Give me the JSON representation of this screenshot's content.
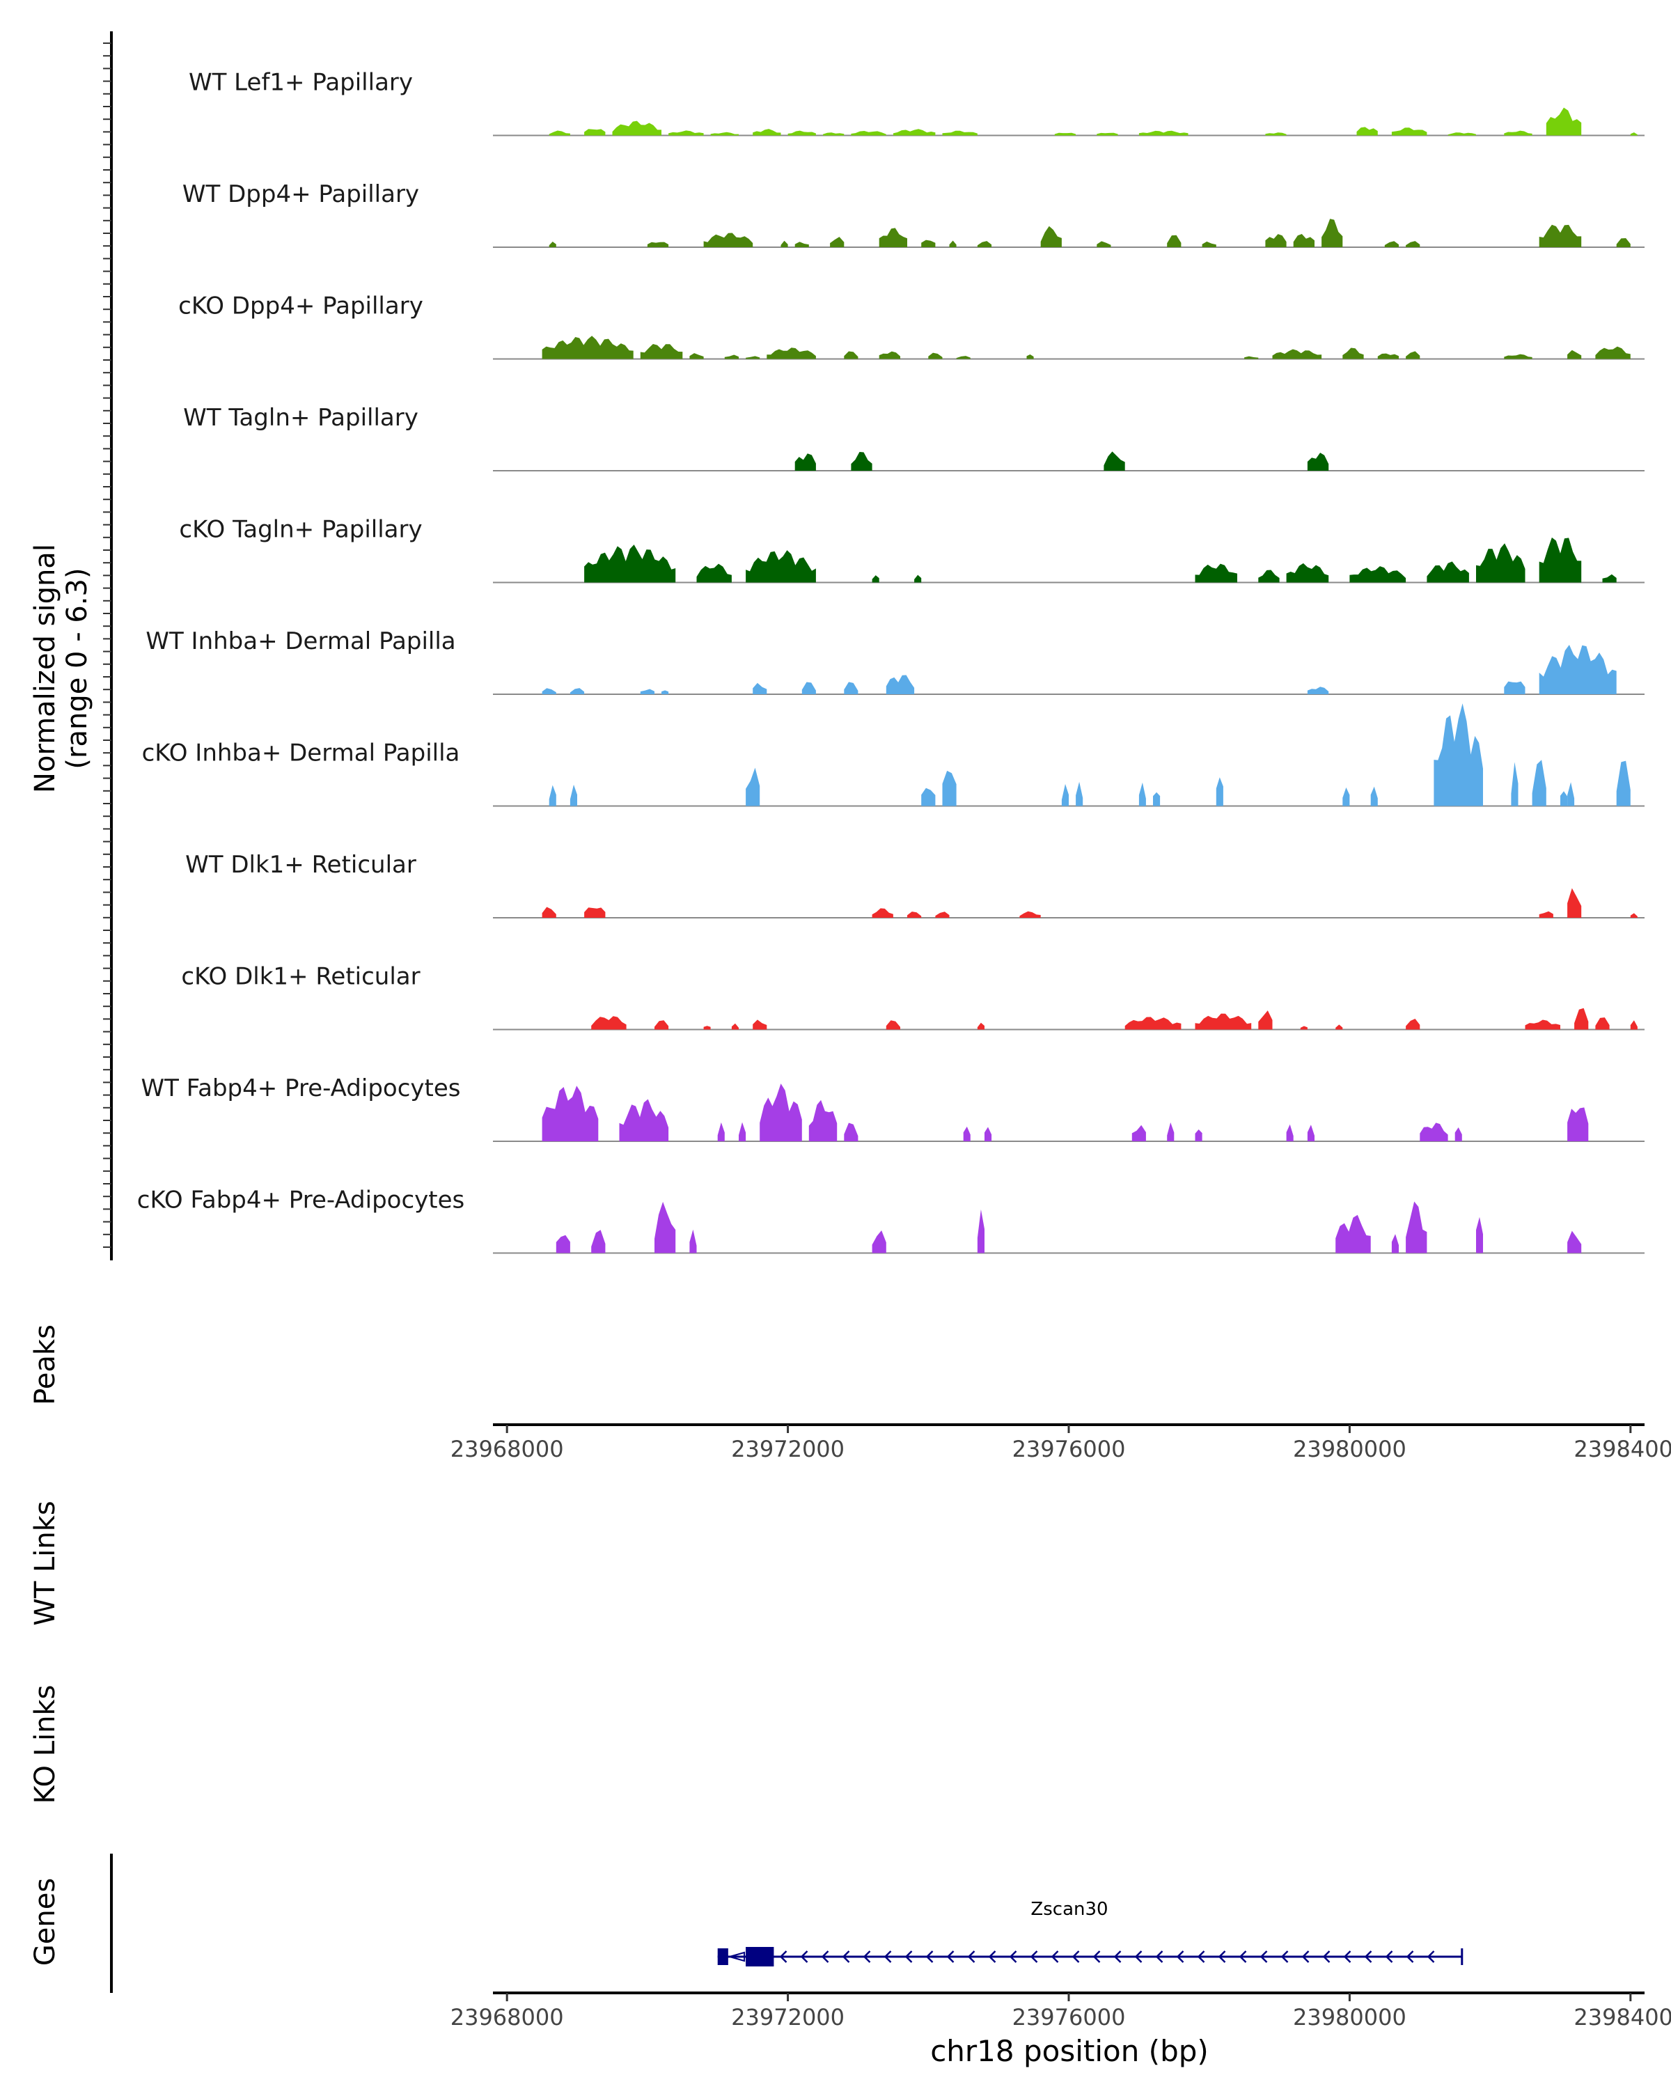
{
  "chart_data": {
    "type": "area",
    "title": "",
    "y_axis_label_line1": "Normalized signal",
    "y_axis_label_line2": "(range 0 - 6.3)",
    "ylim": [
      0,
      6.3
    ],
    "xlabel": "chr18 position (bp)",
    "xlim": [
      23967800,
      23984200
    ],
    "x_ticks": [
      23968000,
      23972000,
      23976000,
      23980000,
      23984000
    ],
    "x_tick_labels": [
      "23968000",
      "23972000",
      "23976000",
      "23980000",
      "23984000"
    ],
    "tracks": [
      {
        "name": "WT Lef1+ Papillary",
        "color": "#77d00a",
        "peaks": [
          [
            23968600,
            23968900,
            0.3
          ],
          [
            23969100,
            23969400,
            0.5
          ],
          [
            23969500,
            23970200,
            0.9
          ],
          [
            23970300,
            23970800,
            0.3
          ],
          [
            23970900,
            23971300,
            0.2
          ],
          [
            23971500,
            23971900,
            0.4
          ],
          [
            23972000,
            23972400,
            0.3
          ],
          [
            23972500,
            23972800,
            0.2
          ],
          [
            23972900,
            23973400,
            0.3
          ],
          [
            23973500,
            23974100,
            0.4
          ],
          [
            23974200,
            23974700,
            0.3
          ],
          [
            23975800,
            23976100,
            0.2
          ],
          [
            23976400,
            23976700,
            0.2
          ],
          [
            23977000,
            23977700,
            0.3
          ],
          [
            23978800,
            23979100,
            0.2
          ],
          [
            23980100,
            23980400,
            0.6
          ],
          [
            23980600,
            23981100,
            0.5
          ],
          [
            23981400,
            23981800,
            0.2
          ],
          [
            23982200,
            23982600,
            0.3
          ],
          [
            23982800,
            23983300,
            1.7
          ],
          [
            23984000,
            23984100,
            0.2
          ]
        ]
      },
      {
        "name": "WT Dpp4+ Papillary",
        "color": "#4b850c",
        "peaks": [
          [
            23968600,
            23968700,
            0.4
          ],
          [
            23970000,
            23970300,
            0.4
          ],
          [
            23970800,
            23971500,
            0.9
          ],
          [
            23971900,
            23972000,
            0.4
          ],
          [
            23972100,
            23972300,
            0.4
          ],
          [
            23972600,
            23972800,
            0.7
          ],
          [
            23973300,
            23973700,
            1.2
          ],
          [
            23973900,
            23974100,
            0.6
          ],
          [
            23974300,
            23974400,
            0.4
          ],
          [
            23974700,
            23974900,
            0.4
          ],
          [
            23975600,
            23975900,
            1.3
          ],
          [
            23976400,
            23976600,
            0.4
          ],
          [
            23977400,
            23977600,
            0.8
          ],
          [
            23977900,
            23978100,
            0.4
          ],
          [
            23978800,
            23979100,
            0.9
          ],
          [
            23979200,
            23979500,
            0.9
          ],
          [
            23979600,
            23979900,
            1.8
          ],
          [
            23980500,
            23980700,
            0.4
          ],
          [
            23980800,
            23981000,
            0.4
          ],
          [
            23982700,
            23983300,
            1.5
          ],
          [
            23983800,
            23984000,
            0.6
          ]
        ]
      },
      {
        "name": "cKO Dpp4+ Papillary",
        "color": "#4b850c",
        "peaks": [
          [
            23968500,
            23969800,
            1.4
          ],
          [
            23969900,
            23970500,
            1.0
          ],
          [
            23970600,
            23970800,
            0.4
          ],
          [
            23971100,
            23971300,
            0.3
          ],
          [
            23971400,
            23971600,
            0.2
          ],
          [
            23971700,
            23972400,
            0.7
          ],
          [
            23972800,
            23973000,
            0.5
          ],
          [
            23973300,
            23973600,
            0.5
          ],
          [
            23974000,
            23974200,
            0.4
          ],
          [
            23974400,
            23974600,
            0.2
          ],
          [
            23975400,
            23975500,
            0.4
          ],
          [
            23978500,
            23978700,
            0.2
          ],
          [
            23978900,
            23979600,
            0.6
          ],
          [
            23979900,
            23980200,
            0.7
          ],
          [
            23980400,
            23980700,
            0.4
          ],
          [
            23980800,
            23981000,
            0.5
          ],
          [
            23982200,
            23982600,
            0.3
          ],
          [
            23983100,
            23983300,
            0.6
          ],
          [
            23983500,
            23984000,
            0.8
          ]
        ]
      },
      {
        "name": "WT Tagln+ Papillary",
        "color": "#006000",
        "peaks": [
          [
            23972100,
            23972400,
            1.2
          ],
          [
            23972900,
            23973200,
            1.2
          ],
          [
            23976500,
            23976800,
            1.2
          ],
          [
            23979400,
            23979700,
            1.2
          ]
        ]
      },
      {
        "name": "cKO Tagln+ Papillary",
        "color": "#006000",
        "peaks": [
          [
            23969100,
            23970400,
            2.3
          ],
          [
            23970700,
            23971200,
            1.2
          ],
          [
            23971400,
            23972400,
            2.0
          ],
          [
            23973200,
            23973300,
            0.6
          ],
          [
            23973800,
            23973900,
            0.6
          ],
          [
            23977800,
            23978400,
            1.2
          ],
          [
            23978700,
            23979000,
            0.8
          ],
          [
            23979100,
            23979700,
            1.2
          ],
          [
            23980000,
            23980800,
            1.0
          ],
          [
            23981100,
            23981700,
            1.3
          ],
          [
            23981800,
            23982500,
            2.4
          ],
          [
            23982700,
            23983300,
            3.0
          ],
          [
            23983600,
            23983800,
            0.6
          ]
        ]
      },
      {
        "name": "WT Inhba+ Dermal Papilla",
        "color": "#5aabe8",
        "peaks": [
          [
            23968500,
            23968700,
            0.4
          ],
          [
            23968900,
            23969100,
            0.4
          ],
          [
            23969900,
            23970100,
            0.4
          ],
          [
            23970200,
            23970300,
            0.4
          ],
          [
            23971500,
            23971700,
            0.8
          ],
          [
            23972200,
            23972400,
            0.8
          ],
          [
            23972800,
            23973000,
            0.8
          ],
          [
            23973400,
            23973800,
            1.3
          ],
          [
            23979400,
            23979700,
            0.5
          ],
          [
            23982200,
            23982500,
            1.0
          ],
          [
            23982700,
            23983800,
            3.1
          ]
        ]
      },
      {
        "name": "cKO Inhba+ Dermal Papilla",
        "color": "#5aabe8",
        "peaks": [
          [
            23968600,
            23968700,
            1.5
          ],
          [
            23968900,
            23969000,
            1.5
          ],
          [
            23971400,
            23971600,
            2.7
          ],
          [
            23973900,
            23974100,
            1.5
          ],
          [
            23974200,
            23974400,
            3.0
          ],
          [
            23975900,
            23976000,
            1.5
          ],
          [
            23976100,
            23976200,
            1.5
          ],
          [
            23977000,
            23977100,
            1.5
          ],
          [
            23977200,
            23977300,
            1.5
          ],
          [
            23978100,
            23978200,
            2.8
          ],
          [
            23979900,
            23980000,
            1.5
          ],
          [
            23980300,
            23980400,
            1.5
          ],
          [
            23981200,
            23981900,
            6.3
          ],
          [
            23982300,
            23982400,
            3.0
          ],
          [
            23982600,
            23982800,
            3.0
          ],
          [
            23983000,
            23983100,
            1.5
          ],
          [
            23983100,
            23983200,
            1.5
          ],
          [
            23983800,
            23984000,
            3.0
          ]
        ]
      },
      {
        "name": "WT Dlk1+ Reticular",
        "color": "#ee2b2b",
        "peaks": [
          [
            23968500,
            23968700,
            0.7
          ],
          [
            23969100,
            23969400,
            0.8
          ],
          [
            23973200,
            23973500,
            0.6
          ],
          [
            23973700,
            23973900,
            0.4
          ],
          [
            23974100,
            23974300,
            0.4
          ],
          [
            23975300,
            23975600,
            0.4
          ],
          [
            23982700,
            23982900,
            0.5
          ],
          [
            23983100,
            23983300,
            2.0
          ],
          [
            23984000,
            23984100,
            0.3
          ]
        ]
      },
      {
        "name": "cKO Dlk1+ Reticular",
        "color": "#ee2b2b",
        "peaks": [
          [
            23969200,
            23969700,
            0.9
          ],
          [
            23970100,
            23970300,
            0.6
          ],
          [
            23970800,
            23970900,
            0.4
          ],
          [
            23971200,
            23971300,
            0.4
          ],
          [
            23971500,
            23971700,
            0.7
          ],
          [
            23973400,
            23973600,
            0.6
          ],
          [
            23974700,
            23974800,
            0.5
          ],
          [
            23976800,
            23977600,
            0.8
          ],
          [
            23977800,
            23978600,
            1.0
          ],
          [
            23978700,
            23978900,
            1.3
          ],
          [
            23979300,
            23979400,
            0.3
          ],
          [
            23979800,
            23979900,
            0.3
          ],
          [
            23980800,
            23981000,
            0.7
          ],
          [
            23982500,
            23983000,
            0.6
          ],
          [
            23983200,
            23983400,
            1.4
          ],
          [
            23983500,
            23983700,
            0.8
          ],
          [
            23984000,
            23984100,
            0.6
          ]
        ]
      },
      {
        "name": "WT Fabp4+ Pre-Adipocytes",
        "color": "#a53ee6",
        "peaks": [
          [
            23968500,
            23969300,
            3.5
          ],
          [
            23969600,
            23970300,
            2.6
          ],
          [
            23971000,
            23971100,
            1.2
          ],
          [
            23971300,
            23971400,
            1.2
          ],
          [
            23971600,
            23972200,
            3.5
          ],
          [
            23972300,
            23972700,
            2.6
          ],
          [
            23972800,
            23973000,
            1.2
          ],
          [
            23974500,
            23974600,
            1.2
          ],
          [
            23974800,
            23974900,
            1.2
          ],
          [
            23976900,
            23977100,
            1.2
          ],
          [
            23977400,
            23977500,
            1.2
          ],
          [
            23977800,
            23977900,
            1.2
          ],
          [
            23979100,
            23979200,
            1.2
          ],
          [
            23979400,
            23979500,
            1.2
          ],
          [
            23981000,
            23981400,
            1.2
          ],
          [
            23981500,
            23981600,
            1.2
          ],
          [
            23983100,
            23983400,
            2.6
          ]
        ]
      },
      {
        "name": "cKO Fabp4+ Pre-Adipocytes",
        "color": "#a53ee6",
        "peaks": [
          [
            23968700,
            23968900,
            1.5
          ],
          [
            23969200,
            23969400,
            1.5
          ],
          [
            23970100,
            23970400,
            3.2
          ],
          [
            23970600,
            23970700,
            1.5
          ],
          [
            23973200,
            23973400,
            1.5
          ],
          [
            23974700,
            23974800,
            3.2
          ],
          [
            23979800,
            23980300,
            2.4
          ],
          [
            23980600,
            23980700,
            1.5
          ],
          [
            23980800,
            23981100,
            3.2
          ],
          [
            23981800,
            23981900,
            3.2
          ],
          [
            23983100,
            23983300,
            1.5
          ]
        ]
      }
    ],
    "panels": {
      "peaks": "Peaks",
      "wt_links": "WT Links",
      "ko_links": "KO Links",
      "genes": "Genes"
    },
    "gene": {
      "name": "Zscan30",
      "start": 23971000,
      "end": 23981600,
      "strand": "-",
      "exons": [
        [
          23971000,
          23971150
        ],
        [
          23971400,
          23971800
        ]
      ],
      "color": "#000080"
    }
  }
}
